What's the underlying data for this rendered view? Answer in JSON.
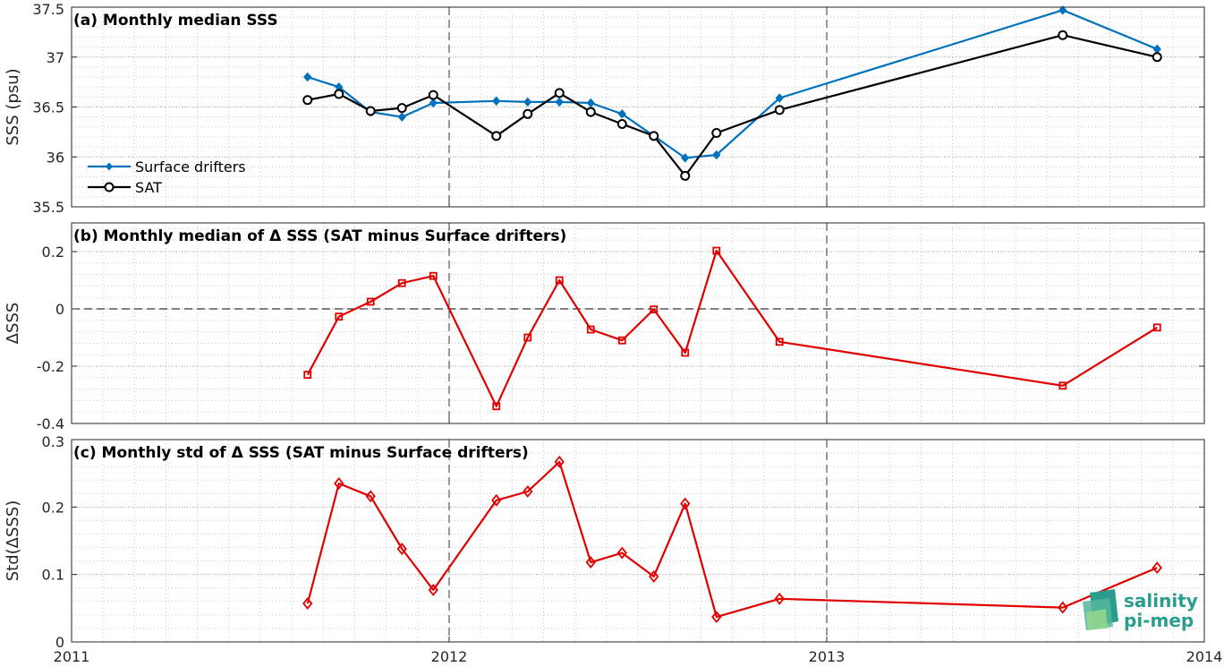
{
  "x_ticks": [
    "2011",
    "2012",
    "2013",
    "2014"
  ],
  "x_tick_values": [
    2011,
    2012,
    2013,
    2014
  ],
  "x_range": [
    2011,
    2014
  ],
  "vline_x": [
    2012,
    2013
  ],
  "logo": {
    "line1": "salinity",
    "line2": "pi-mep"
  },
  "colors": {
    "drifters": "#0072BD",
    "sat": "#000000",
    "delta": "#E00000"
  },
  "chart_data": [
    {
      "type": "line",
      "title": "(a) Monthly median SSS",
      "ylabel": "SSS (psu)",
      "ylim": [
        35.5,
        37.5
      ],
      "y_ticks": [
        "35.5",
        "36",
        "36.5",
        "37",
        "37.5"
      ],
      "y_tick_values": [
        35.5,
        36,
        36.5,
        37,
        37.5
      ],
      "grid": true,
      "legend": "left",
      "x": [
        2011.625,
        2011.708,
        2011.792,
        2011.875,
        2011.958,
        2012.125,
        2012.208,
        2012.292,
        2012.375,
        2012.458,
        2012.542,
        2012.625,
        2012.708,
        2012.875,
        2013.625,
        2013.875
      ],
      "series": [
        {
          "name": "Surface drifters",
          "values": [
            36.8,
            36.7,
            36.45,
            36.4,
            36.54,
            36.56,
            36.55,
            36.55,
            36.54,
            36.43,
            36.21,
            35.99,
            36.02,
            36.59,
            37.47,
            37.08
          ]
        },
        {
          "name": "SAT",
          "values": [
            36.57,
            36.63,
            36.46,
            36.49,
            36.62,
            36.21,
            36.43,
            36.64,
            36.45,
            36.33,
            36.21,
            35.81,
            36.24,
            36.47,
            37.22,
            37.0
          ]
        }
      ]
    },
    {
      "type": "line",
      "title": "(b) Monthly median of Δ SSS (SAT minus Surface drifters)",
      "ylabel": "ΔSSS",
      "ylim": [
        -0.4,
        0.3
      ],
      "y_ticks": [
        "-0.4",
        "-0.2",
        "0",
        "0.2"
      ],
      "y_tick_values": [
        -0.4,
        -0.2,
        0,
        0.2
      ],
      "zero_line": true,
      "grid": true,
      "x": [
        2011.625,
        2011.708,
        2011.792,
        2011.875,
        2011.958,
        2012.125,
        2012.208,
        2012.292,
        2012.375,
        2012.458,
        2012.542,
        2012.625,
        2012.708,
        2012.875,
        2013.625,
        2013.875
      ],
      "series": [
        {
          "values": [
            -0.23,
            -0.027,
            0.025,
            0.09,
            0.115,
            -0.34,
            -0.1,
            0.1,
            -0.072,
            -0.11,
            -0.002,
            -0.153,
            0.203,
            -0.115,
            -0.268,
            -0.065
          ]
        }
      ]
    },
    {
      "type": "line",
      "title": "(c) Monthly std of Δ SSS (SAT minus Surface drifters)",
      "ylabel": "Std(ΔSSS)",
      "ylim": [
        0,
        0.3
      ],
      "y_ticks": [
        "0",
        "0.1",
        "0.2",
        "0.3"
      ],
      "y_tick_values": [
        0,
        0.1,
        0.2,
        0.3
      ],
      "grid": true,
      "x": [
        2011.625,
        2011.708,
        2011.792,
        2011.875,
        2011.958,
        2012.125,
        2012.208,
        2012.292,
        2012.375,
        2012.458,
        2012.542,
        2012.625,
        2012.708,
        2012.875,
        2013.625,
        2013.875
      ],
      "series": [
        {
          "values": [
            0.057,
            0.235,
            0.216,
            0.138,
            0.077,
            0.21,
            0.223,
            0.267,
            0.118,
            0.132,
            0.097,
            0.205,
            0.037,
            0.064,
            0.051,
            0.11
          ]
        }
      ]
    }
  ]
}
